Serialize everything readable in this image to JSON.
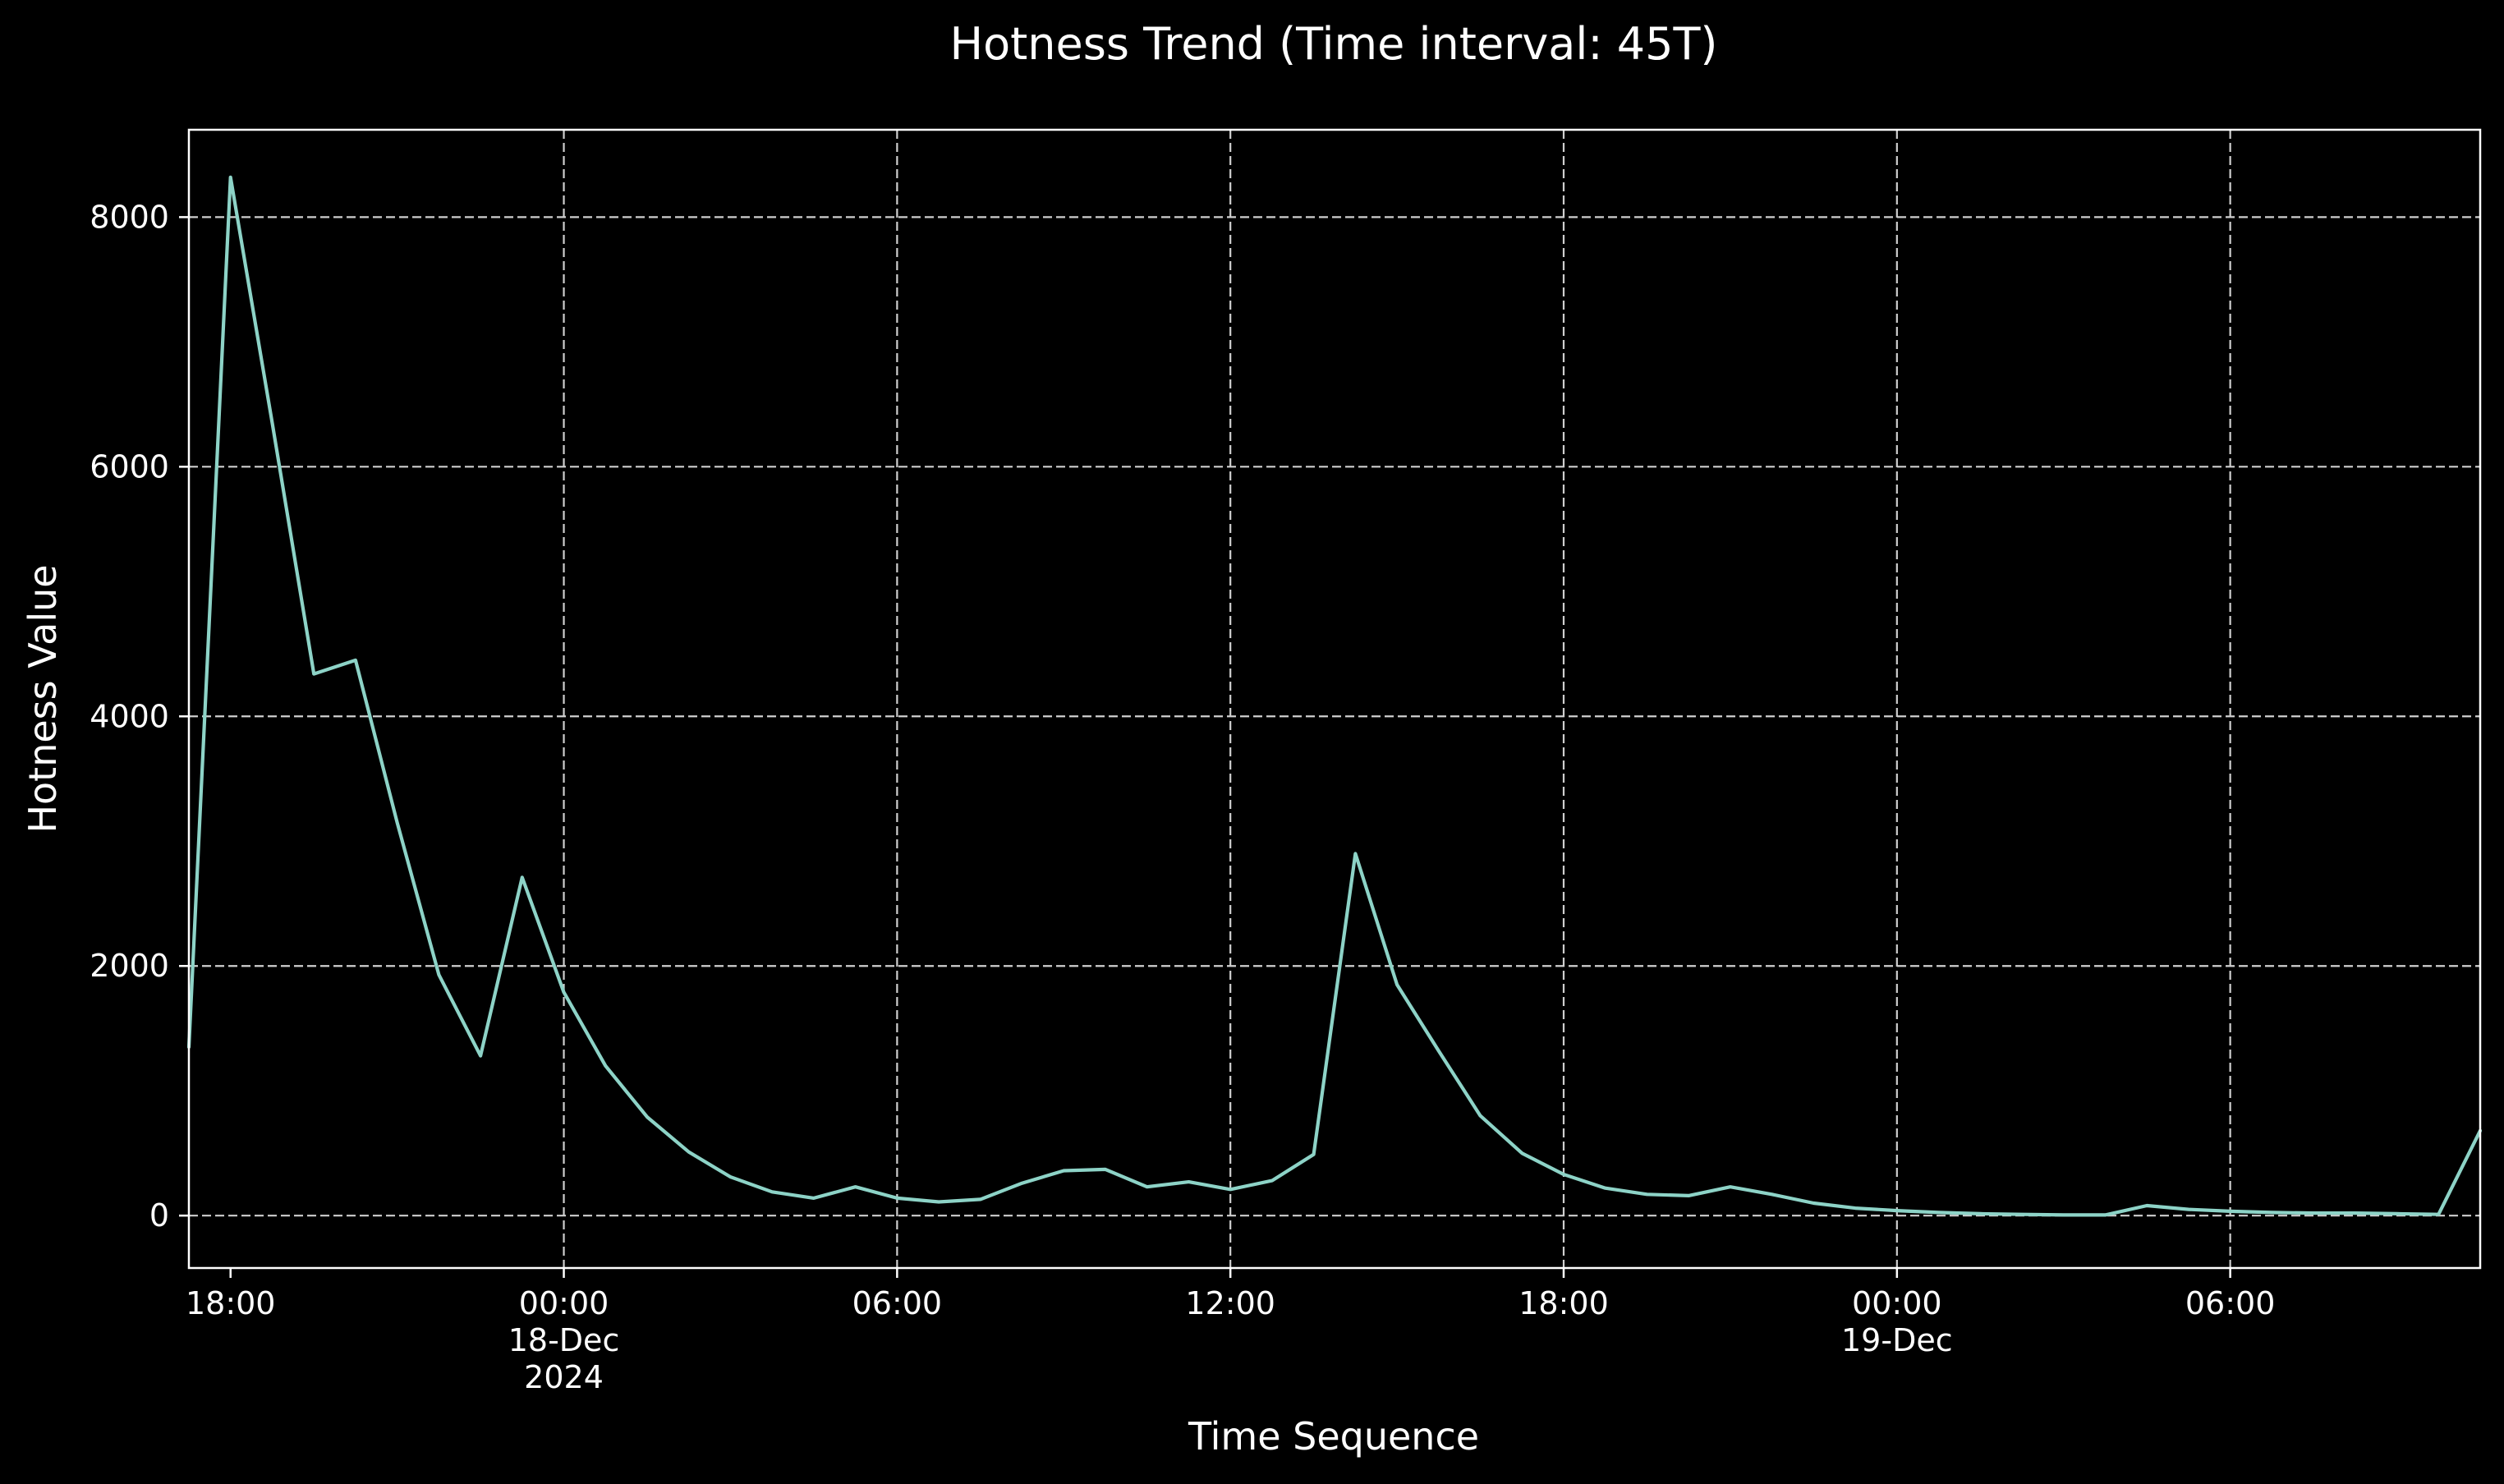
{
  "chart_data": {
    "type": "line",
    "title": "Hotness Trend (Time interval: 45T)",
    "xlabel": "Time Sequence",
    "ylabel": "Hotness Value",
    "ylim": [
      -420,
      8700
    ],
    "xlim": [
      "2024-12-17 17:15",
      "2024-12-19 10:30"
    ],
    "grid": true,
    "colors": {
      "background": "#000000",
      "line": "#8dd3c7",
      "axes": "#ffffff",
      "grid": "#cfcfcf"
    },
    "y_ticks": [
      {
        "value": 0,
        "label": "0"
      },
      {
        "value": 2000,
        "label": "2000"
      },
      {
        "value": 4000,
        "label": "4000"
      },
      {
        "value": 6000,
        "label": "6000"
      },
      {
        "value": 8000,
        "label": "8000"
      }
    ],
    "x_ticks": [
      {
        "value": "2024-12-17 18:00",
        "lines": [
          "18:00"
        ]
      },
      {
        "value": "2024-12-18 00:00",
        "lines": [
          "00:00",
          "18-Dec",
          "2024"
        ]
      },
      {
        "value": "2024-12-18 06:00",
        "lines": [
          "06:00"
        ]
      },
      {
        "value": "2024-12-18 12:00",
        "lines": [
          "12:00"
        ]
      },
      {
        "value": "2024-12-18 18:00",
        "lines": [
          "18:00"
        ]
      },
      {
        "value": "2024-12-19 00:00",
        "lines": [
          "00:00",
          "19-Dec"
        ]
      },
      {
        "value": "2024-12-19 06:00",
        "lines": [
          "06:00"
        ]
      }
    ],
    "series": [
      {
        "x": [
          "2024-12-17 17:15",
          "2024-12-17 18:00",
          "2024-12-17 18:45",
          "2024-12-17 19:30",
          "2024-12-17 20:15",
          "2024-12-17 21:00",
          "2024-12-17 21:45",
          "2024-12-17 22:30",
          "2024-12-17 23:15",
          "2024-12-18 00:00",
          "2024-12-18 00:45",
          "2024-12-18 01:30",
          "2024-12-18 02:15",
          "2024-12-18 03:00",
          "2024-12-18 03:45",
          "2024-12-18 04:30",
          "2024-12-18 05:15",
          "2024-12-18 06:00",
          "2024-12-18 06:45",
          "2024-12-18 07:30",
          "2024-12-18 08:15",
          "2024-12-18 09:00",
          "2024-12-18 09:45",
          "2024-12-18 10:30",
          "2024-12-18 11:15",
          "2024-12-18 12:00",
          "2024-12-18 12:45",
          "2024-12-18 13:30",
          "2024-12-18 14:15",
          "2024-12-18 15:00",
          "2024-12-18 15:45",
          "2024-12-18 16:30",
          "2024-12-18 17:15",
          "2024-12-18 18:00",
          "2024-12-18 18:45",
          "2024-12-18 19:30",
          "2024-12-18 20:15",
          "2024-12-18 21:00",
          "2024-12-18 21:45",
          "2024-12-18 22:30",
          "2024-12-18 23:15",
          "2024-12-19 00:00",
          "2024-12-19 00:45",
          "2024-12-19 01:30",
          "2024-12-19 02:15",
          "2024-12-19 03:00",
          "2024-12-19 03:45",
          "2024-12-19 04:30",
          "2024-12-19 05:15",
          "2024-12-19 06:00",
          "2024-12-19 06:45",
          "2024-12-19 07:30",
          "2024-12-19 08:15",
          "2024-12-19 09:00",
          "2024-12-19 09:45",
          "2024-12-19 10:30"
        ],
        "values": [
          1350,
          8320,
          6350,
          4340,
          4450,
          3150,
          1930,
          1280,
          2710,
          1790,
          1200,
          790,
          510,
          310,
          190,
          140,
          230,
          140,
          110,
          130,
          260,
          360,
          370,
          230,
          270,
          210,
          280,
          490,
          2900,
          1850,
          1320,
          800,
          500,
          330,
          220,
          170,
          160,
          230,
          170,
          100,
          60,
          40,
          25,
          15,
          10,
          5,
          5,
          80,
          50,
          35,
          25,
          20,
          20,
          15,
          10,
          680
        ]
      }
    ]
  }
}
